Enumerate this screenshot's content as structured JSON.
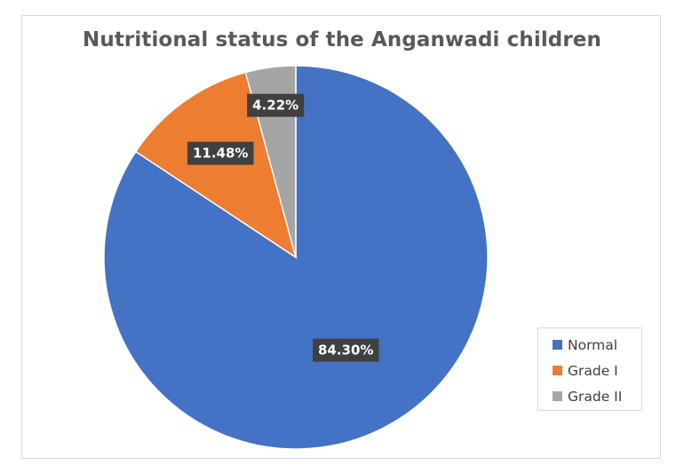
{
  "chart_data": {
    "type": "pie",
    "title": "Nutritional status of the Anganwadi children",
    "categories": [
      "Normal",
      "Grade I",
      "Grade II"
    ],
    "values": [
      84.3,
      11.48,
      4.22
    ],
    "data_labels": [
      "84.30%",
      "11.48%",
      "4.22%"
    ],
    "colors": [
      "#4472c4",
      "#ed7d31",
      "#a5a5a5"
    ],
    "legend_position": "right"
  }
}
